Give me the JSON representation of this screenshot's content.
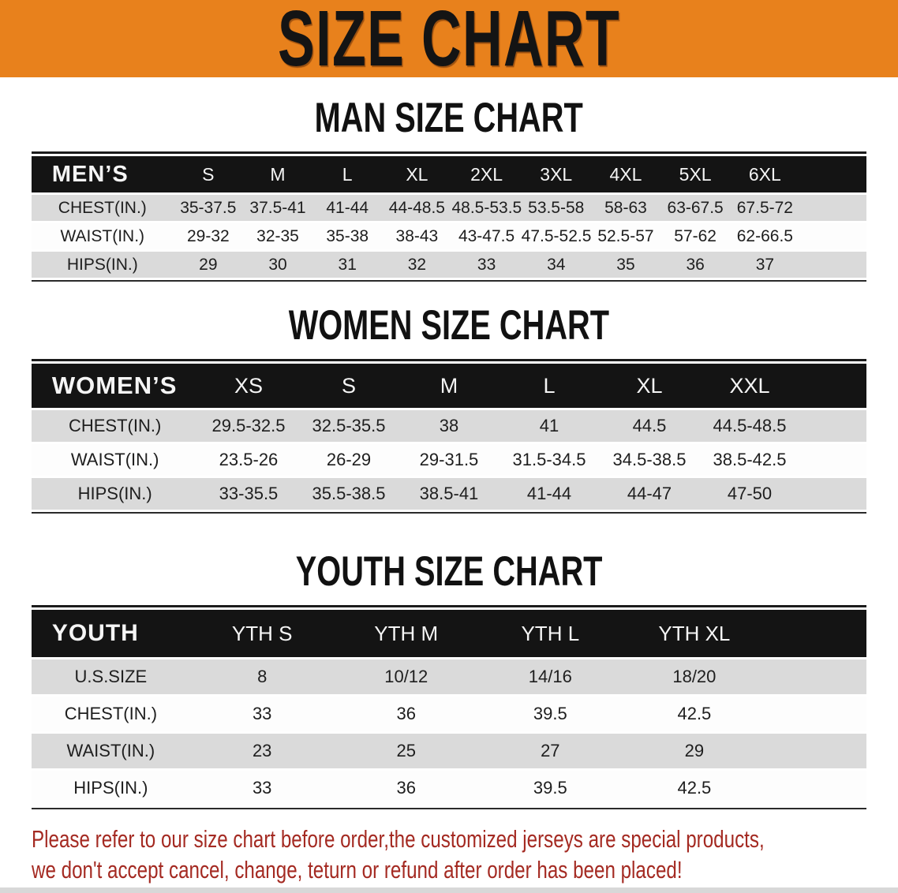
{
  "banner": {
    "title": "SIZE CHART",
    "bg_color": "#E8811C",
    "title_color": "#141414"
  },
  "man_section": {
    "heading": "MAN SIZE CHART"
  },
  "men_table": {
    "label": "MEN’S",
    "sizes": [
      "S",
      "M",
      "L",
      "XL",
      "2XL",
      "3XL",
      "4XL",
      "5XL",
      "6XL"
    ],
    "rows": [
      {
        "label": "CHEST(IN.)",
        "values": [
          "35-37.5",
          "37.5-41",
          "41-44",
          "44-48.5",
          "48.5-53.5",
          "53.5-58",
          "58-63",
          "63-67.5",
          "67.5-72"
        ]
      },
      {
        "label": "WAIST(IN.)",
        "values": [
          "29-32",
          "32-35",
          "35-38",
          "38-43",
          "43-47.5",
          "47.5-52.5",
          "52.5-57",
          "57-62",
          "62-66.5"
        ]
      },
      {
        "label": "HIPS(IN.)",
        "values": [
          "29",
          "30",
          "31",
          "32",
          "33",
          "34",
          "35",
          "36",
          "37"
        ]
      }
    ]
  },
  "women_section": {
    "heading": "WOMEN SIZE CHART"
  },
  "women_table": {
    "label": "WOMEN’S",
    "sizes": [
      "XS",
      "S",
      "M",
      "L",
      "XL",
      "XXL"
    ],
    "rows": [
      {
        "label": "CHEST(IN.)",
        "values": [
          "29.5-32.5",
          "32.5-35.5",
          "38",
          "41",
          "44.5",
          "44.5-48.5"
        ]
      },
      {
        "label": "WAIST(IN.)",
        "values": [
          "23.5-26",
          "26-29",
          "29-31.5",
          "31.5-34.5",
          "34.5-38.5",
          "38.5-42.5"
        ]
      },
      {
        "label": "HIPS(IN.)",
        "values": [
          "33-35.5",
          "35.5-38.5",
          "38.5-41",
          "41-44",
          "44-47",
          "47-50"
        ]
      }
    ]
  },
  "youth_section": {
    "heading": "YOUTH SIZE CHART"
  },
  "youth_table": {
    "label": "YOUTH",
    "sizes": [
      "YTH S",
      "YTH M",
      "YTH L",
      "YTH XL"
    ],
    "rows": [
      {
        "label": "U.S.SIZE",
        "values": [
          "8",
          "10/12",
          "14/16",
          "18/20"
        ]
      },
      {
        "label": "CHEST(IN.)",
        "values": [
          "33",
          "36",
          "39.5",
          "42.5"
        ]
      },
      {
        "label": "WAIST(IN.)",
        "values": [
          "23",
          "25",
          "27",
          "29"
        ]
      },
      {
        "label": "HIPS(IN.)",
        "values": [
          "33",
          "36",
          "39.5",
          "42.5"
        ]
      }
    ]
  },
  "note": {
    "line1": "Please refer to our size chart before order,the customized jerseys are special products,",
    "line2": "we don't accept cancel, change, teturn or refund after order has been placed!",
    "text_color": "#A42A22"
  },
  "colors": {
    "table_header_bg": "#141414",
    "row_gray": "#DADADA",
    "row_white": "#FDFDFD"
  }
}
